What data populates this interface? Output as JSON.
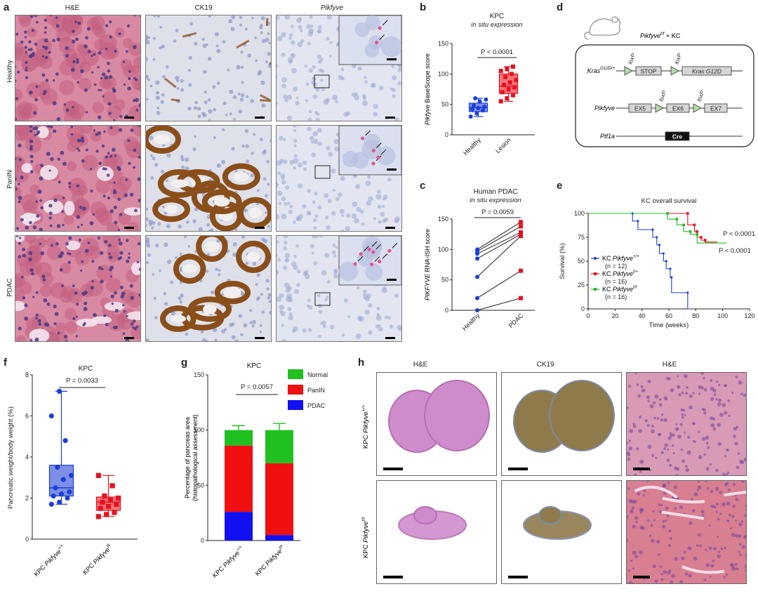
{
  "panel_letters": {
    "a": "a",
    "b": "b",
    "c": "c",
    "d": "d",
    "e": "e",
    "f": "f",
    "g": "g",
    "h": "h"
  },
  "panel_a": {
    "columns": [
      "H&E",
      "CK19",
      "Pikfyve"
    ],
    "rows": [
      "Healthy",
      "PanIN",
      "PDAC"
    ],
    "colors": {
      "he_bg": "#d98aa3",
      "he_cell": "#c2607f",
      "he_nuc": "#4b3a86",
      "ck19_bg": "#dfe1ea",
      "ck19_brown": "#8a4e1a",
      "ish_bg": "#e3e6f0",
      "ish_nuc": "#9ba7cf",
      "ish_dot": "#e0559b"
    }
  },
  "panel_b": {
    "chart_data": {
      "type": "box",
      "title": "KPC",
      "subtitle": "in situ expression",
      "ylabel_italic": "Pikfyve",
      "ylabel_rest": " BaseScope score",
      "categories": [
        "Healthy",
        "Lesion"
      ],
      "ylim": [
        0,
        150
      ],
      "yticks": [
        "0",
        "50",
        "100",
        "150"
      ],
      "p_value_label": "P < 0.0001",
      "series": [
        {
          "name": "Healthy",
          "color": "#1a3fd9",
          "fill": "#7d8fe6",
          "q1": 38,
          "median": 45,
          "q3": 52,
          "min": 30,
          "max": 60,
          "points": [
            30,
            35,
            40,
            42,
            44,
            46,
            48,
            55,
            58,
            60
          ]
        },
        {
          "name": "Lesion",
          "color": "#e8101e",
          "fill": "#f4777d",
          "q1": 68,
          "median": 80,
          "q3": 100,
          "min": 55,
          "max": 112,
          "points": [
            55,
            60,
            65,
            70,
            75,
            78,
            82,
            86,
            90,
            95,
            100,
            105,
            108,
            112
          ]
        }
      ]
    }
  },
  "panel_c": {
    "chart_data": {
      "type": "line",
      "title": "Human PDAC",
      "subtitle": "in situ expression",
      "ylabel_italic": "PIKFYVE",
      "ylabel_rest": " RNA-ISH score",
      "categories": [
        "Healthy",
        "PDAC"
      ],
      "ylim": [
        0,
        150
      ],
      "yticks": [
        "0",
        "50",
        "100",
        "150"
      ],
      "p_value_label": "P = 0.0059",
      "pairs": [
        [
          100,
          145
        ],
        [
          97,
          138
        ],
        [
          93,
          128
        ],
        [
          85,
          125
        ],
        [
          55,
          122
        ],
        [
          20,
          65
        ],
        [
          0,
          20
        ]
      ],
      "color_healthy": "#1a3fd9",
      "color_pdac": "#e8101e"
    }
  },
  "panel_d": {
    "mouse_label_main": "Pikfyve",
    "mouse_label_sup": "f/f",
    "mouse_label_tail": " × KC",
    "rows": [
      {
        "gene": "Kras",
        "gene_sup": "G12D/+",
        "boxes": [
          "STOP",
          "Kras G12D"
        ],
        "loxp": [
          "loxP",
          "loxP"
        ]
      },
      {
        "gene": "Pikfyve",
        "gene_sup": "",
        "boxes": [
          "EX5",
          "EX6",
          "EX7"
        ],
        "loxp": [
          "loxP",
          "loxP"
        ]
      },
      {
        "gene": "Ptf1a",
        "gene_sup": "",
        "boxes": [
          "Cre"
        ],
        "loxp": []
      }
    ]
  },
  "panel_e": {
    "chart_data": {
      "type": "line",
      "title": "KC overall survival",
      "xlabel": "Time (weeks)",
      "ylabel": "Survival (%)",
      "xlim": [
        0,
        120
      ],
      "ylim": [
        0,
        100
      ],
      "xticks": [
        "0",
        "20",
        "40",
        "60",
        "80",
        "100",
        "120"
      ],
      "yticks": [
        "0",
        "25",
        "50",
        "75",
        "100"
      ],
      "p_labels": [
        "P < 0.0001",
        "P < 0.0001"
      ],
      "series": [
        {
          "name": "KC Pikfyve+/+",
          "sup": "+/+",
          "n": "(n = 12)",
          "color": "#1a3fd9",
          "steps": [
            [
              0,
              100
            ],
            [
              33,
              100
            ],
            [
              33,
              92
            ],
            [
              37,
              92
            ],
            [
              37,
              83
            ],
            [
              48,
              83
            ],
            [
              48,
              75
            ],
            [
              51,
              75
            ],
            [
              51,
              67
            ],
            [
              53,
              67
            ],
            [
              53,
              58
            ],
            [
              56,
              58
            ],
            [
              56,
              50
            ],
            [
              58,
              50
            ],
            [
              58,
              42
            ],
            [
              61,
              42
            ],
            [
              61,
              33
            ],
            [
              62,
              33
            ],
            [
              62,
              17
            ],
            [
              74,
              17
            ],
            [
              74,
              0
            ],
            [
              76,
              0
            ]
          ]
        },
        {
          "name": "KC Pikfyvef/+",
          "sup": "f/+",
          "n": "(n = 16)",
          "color": "#e8101e",
          "steps": [
            [
              0,
              100
            ],
            [
              74,
              100
            ],
            [
              74,
              88
            ],
            [
              79,
              88
            ],
            [
              79,
              81
            ],
            [
              81,
              81
            ],
            [
              81,
              75
            ],
            [
              84,
              75
            ],
            [
              84,
              72
            ],
            [
              87,
              72
            ],
            [
              87,
              70
            ],
            [
              96,
              70
            ]
          ]
        },
        {
          "name": "KC Pikfyvef/f",
          "sup": "f/f",
          "n": "(n = 16)",
          "color": "#22bb22",
          "steps": [
            [
              0,
              100
            ],
            [
              59,
              100
            ],
            [
              59,
              94
            ],
            [
              66,
              94
            ],
            [
              66,
              88
            ],
            [
              71,
              88
            ],
            [
              71,
              81
            ],
            [
              76,
              81
            ],
            [
              76,
              78
            ],
            [
              81,
              78
            ],
            [
              81,
              69
            ],
            [
              103,
              69
            ]
          ]
        }
      ]
    }
  },
  "panel_f": {
    "chart_data": {
      "type": "box",
      "title": "KPC",
      "ylabel": "Pancreatic weight/body weight (%)",
      "categories": [
        "KPC Pikfyve+/+",
        "KPC Pikfyvef/f"
      ],
      "category_sups": [
        "+/+",
        "f/f"
      ],
      "ylim": [
        0,
        8
      ],
      "yticks": [
        "0",
        "2",
        "4",
        "6",
        "8"
      ],
      "p_value_label": "P = 0.0033",
      "series": [
        {
          "name": "KPC Pikfyve+/+",
          "color": "#1a3fd9",
          "fill": "#7d8fe6",
          "q1": 2.1,
          "median": 2.5,
          "q3": 3.6,
          "min": 1.7,
          "max": 7.2,
          "points": [
            1.7,
            1.8,
            2.0,
            2.1,
            2.2,
            2.3,
            2.5,
            2.9,
            3.1,
            3.5,
            4.8,
            6.0,
            7.2
          ]
        },
        {
          "name": "KPC Pikfyvef/f",
          "color": "#e8101e",
          "fill": "#f4777d",
          "q1": 1.4,
          "median": 1.8,
          "q3": 2.05,
          "min": 1.1,
          "max": 3.1,
          "points": [
            1.1,
            1.2,
            1.3,
            1.5,
            1.6,
            1.7,
            1.8,
            1.9,
            2.0,
            2.1,
            2.6,
            3.1
          ]
        }
      ]
    }
  },
  "panel_g": {
    "chart_data": {
      "type": "bar",
      "stacked": true,
      "title": "KPC",
      "ylabel": "Percentage of pancreas area (histopathological assessment)",
      "ylabel_line1": "Percentage of pancreas area",
      "ylabel_line2": "(histopathological assessment)",
      "categories": [
        "KPC Pikfyve+/+",
        "KPC Pikfyvef/f"
      ],
      "category_sups": [
        "+/+",
        "f/f"
      ],
      "ylim": [
        0,
        150
      ],
      "yticks": [
        "0",
        "50",
        "100",
        "150"
      ],
      "p_value_label": "P = 0.0057",
      "series": [
        {
          "name": "PDAC",
          "color": "#1010f0",
          "values": [
            26,
            5
          ],
          "err": [
            7,
            2
          ]
        },
        {
          "name": "PanIN",
          "color": "#f01010",
          "values": [
            60,
            65
          ],
          "err": [
            6,
            6
          ]
        },
        {
          "name": "Normal",
          "color": "#20c020",
          "values": [
            14,
            30
          ],
          "err": [
            4,
            6
          ]
        }
      ],
      "legend_order": [
        "Normal",
        "PanIN",
        "PDAC"
      ]
    }
  },
  "panel_h": {
    "columns": [
      "H&E",
      "CK19",
      "H&E"
    ],
    "rows": [
      {
        "main": "KPC Pikfyve",
        "sup": "+/+"
      },
      {
        "main": "KPC Pikfyve",
        "sup": "f/f"
      }
    ]
  }
}
